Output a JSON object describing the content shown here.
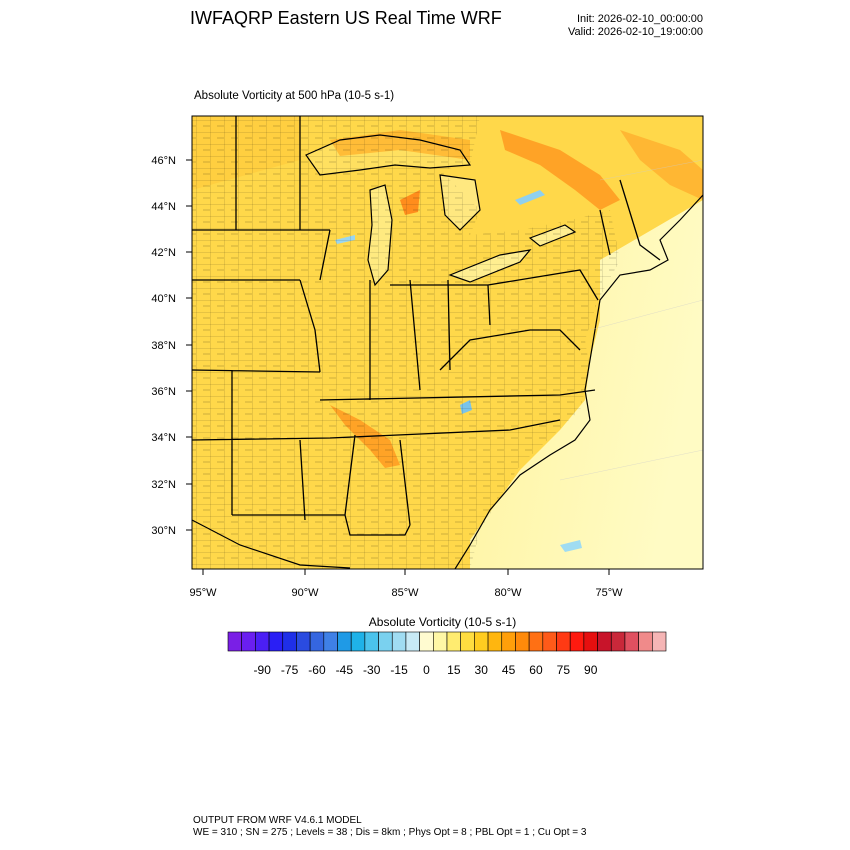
{
  "header": {
    "title": "IWFAQRP Eastern US Real Time WRF",
    "init": "Init: 2026-02-10_00:00:00",
    "valid": "Valid: 2026-02-10_19:00:00"
  },
  "map": {
    "subtitle": "Absolute Vorticity at 500 hPa   (10-5 s-1)",
    "lat_labels": [
      "46°N",
      "44°N",
      "42°N",
      "40°N",
      "38°N",
      "36°N",
      "34°N",
      "32°N",
      "30°N"
    ],
    "lon_labels": [
      "95°W",
      "90°W",
      "85°W",
      "80°W",
      "75°W"
    ]
  },
  "colorbar": {
    "title": "Absolute Vorticity  (10-5 s-1)",
    "ticks": [
      "-90",
      "-75",
      "-60",
      "-45",
      "-30",
      "-15",
      "0",
      "15",
      "30",
      "45",
      "60",
      "75",
      "90"
    ],
    "colors": [
      "#7a1fe6",
      "#6a1ff0",
      "#4b1ff5",
      "#2a1ff5",
      "#1f2fe8",
      "#2a4be0",
      "#3566e0",
      "#3f80e6",
      "#1f9ae6",
      "#1fb2e8",
      "#4bc3ec",
      "#7ad1ef",
      "#a0dcf2",
      "#c8eaf6",
      "#fffbd0",
      "#fff7a6",
      "#ffec70",
      "#ffdd40",
      "#ffcc20",
      "#ffb60f",
      "#ff9f0a",
      "#ff8a0a",
      "#ff7014",
      "#ff5a19",
      "#ff3a14",
      "#ff1a0f",
      "#e60f0f",
      "#c8142a",
      "#c9283a",
      "#e05060",
      "#f08a8a",
      "#f5b5b5"
    ]
  },
  "footer": {
    "line1": "OUTPUT FROM WRF V4.6.1 MODEL",
    "line2": "WE = 310 ; SN = 275 ; Levels = 38 ; Dis = 8km ; Phys Opt = 8 ; PBL Opt = 1 ; Cu Opt = 3"
  }
}
